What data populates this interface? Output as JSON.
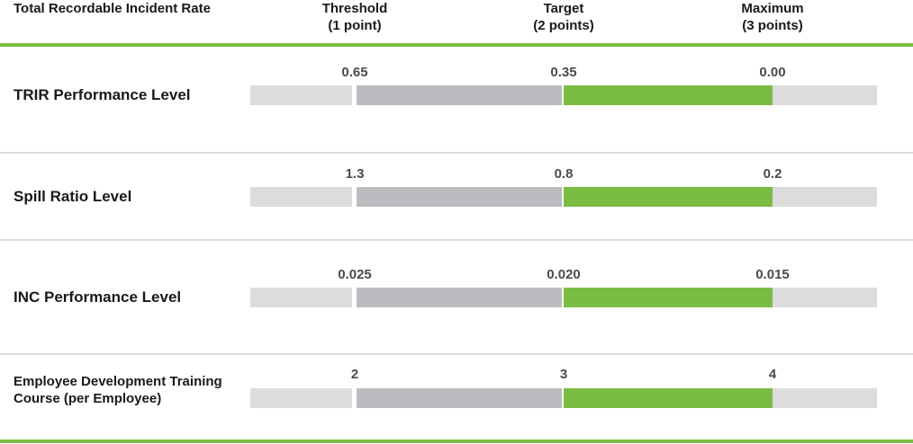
{
  "header": {
    "metric_title": "Total Recordable Incident Rate",
    "columns": [
      {
        "name": "Threshold",
        "points": "(1 point)"
      },
      {
        "name": "Target",
        "points": "(2 points)"
      },
      {
        "name": "Maximum",
        "points": "(3 points)"
      }
    ]
  },
  "colors": {
    "green": "#7bbd42",
    "mid_gray": "#bcbcc0",
    "light_gray": "#dcdcdc"
  },
  "chart_data": {
    "type": "bar",
    "rows": [
      {
        "label": "TRIR Performance Level",
        "threshold": "0.65",
        "target": "0.35",
        "maximum": "0.00"
      },
      {
        "label": "Spill Ratio Level",
        "threshold": "1.3",
        "target": "0.8",
        "maximum": "0.2"
      },
      {
        "label": "INC Performance Level",
        "threshold": "0.025",
        "target": "0.020",
        "maximum": "0.015"
      },
      {
        "label": "Employee Development Training Course (per Employee)",
        "threshold": "2",
        "target": "3",
        "maximum": "4"
      }
    ]
  }
}
